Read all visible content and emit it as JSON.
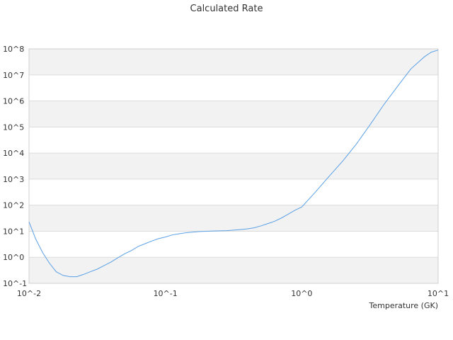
{
  "chart_data": {
    "type": "line",
    "title": "Calculated Rate",
    "xlabel": "Temperature (GK)",
    "ylabel": "",
    "x_scale": "log",
    "y_scale": "log",
    "xlim": [
      0.01,
      10
    ],
    "ylim": [
      0.1,
      100000000
    ],
    "x_tick_labels": [
      "10^-2",
      "10^-1",
      "10^0",
      "10^1"
    ],
    "y_tick_labels": [
      "10^-1",
      "10^0",
      "10^1",
      "10^2",
      "10^3",
      "10^4",
      "10^5",
      "10^6",
      "10^7",
      "10^8"
    ],
    "grid": true,
    "banded_background": true,
    "legend": "none",
    "series_color": "#5aa0e6",
    "series": [
      {
        "x": [
          0.01,
          0.0112,
          0.0126,
          0.0141,
          0.0158,
          0.0178,
          0.02,
          0.0224,
          0.0251,
          0.0282,
          0.0316,
          0.0355,
          0.0398,
          0.0447,
          0.0501,
          0.0562,
          0.0631,
          0.0708,
          0.0794,
          0.0891,
          0.1,
          0.112,
          0.126,
          0.141,
          0.158,
          0.178,
          0.2,
          0.224,
          0.251,
          0.282,
          0.316,
          0.355,
          0.398,
          0.447,
          0.501,
          0.562,
          0.631,
          0.708,
          0.794,
          0.891,
          1.0,
          1.26,
          1.58,
          2.0,
          2.51,
          3.16,
          3.98,
          5.01,
          6.31,
          7.94,
          8.91,
          10.0
        ],
        "y": [
          23,
          5,
          1.5,
          0.6,
          0.28,
          0.2,
          0.18,
          0.18,
          0.22,
          0.28,
          0.35,
          0.48,
          0.65,
          0.95,
          1.35,
          1.8,
          2.6,
          3.3,
          4.2,
          5.2,
          6,
          7.2,
          8,
          8.7,
          9.2,
          9.7,
          10,
          10.2,
          10.4,
          10.5,
          11,
          11.6,
          12.3,
          13.5,
          16,
          19.5,
          24,
          32,
          45,
          64,
          85,
          320,
          1250,
          5000,
          22000,
          120000,
          700000,
          3500000,
          17000000,
          50000000,
          75000000,
          90000000
        ]
      }
    ]
  }
}
